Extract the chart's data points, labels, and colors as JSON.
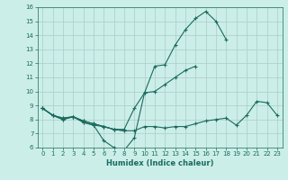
{
  "title": "",
  "xlabel": "Humidex (Indice chaleur)",
  "bg_color": "#cceee8",
  "grid_color": "#aacccc",
  "line_color": "#1a6b5e",
  "xlim": [
    -0.5,
    23.5
  ],
  "ylim": [
    6,
    16
  ],
  "x": [
    0,
    1,
    2,
    3,
    4,
    5,
    6,
    7,
    8,
    9,
    10,
    11,
    12,
    13,
    14,
    15,
    16,
    17,
    18,
    19,
    20,
    21,
    22,
    23
  ],
  "line1": [
    8.8,
    8.3,
    8.0,
    8.2,
    7.8,
    7.6,
    6.5,
    6.0,
    5.8,
    6.7,
    9.9,
    11.8,
    11.9,
    13.3,
    14.4,
    15.2,
    15.7,
    15.0,
    13.7,
    null,
    null,
    null,
    null,
    null
  ],
  "line2": [
    8.8,
    8.3,
    8.0,
    8.2,
    7.8,
    7.6,
    7.5,
    7.3,
    7.3,
    8.8,
    9.9,
    10.0,
    10.5,
    11.0,
    11.5,
    11.8,
    null,
    null,
    null,
    null,
    null,
    null,
    null,
    null
  ],
  "line3": [
    8.8,
    8.3,
    8.1,
    8.2,
    7.9,
    7.7,
    7.5,
    7.3,
    7.2,
    7.2,
    7.5,
    7.5,
    7.4,
    7.5,
    7.5,
    7.7,
    7.9,
    8.0,
    8.1,
    7.6,
    8.3,
    9.3,
    9.2,
    8.3
  ],
  "line4": [
    8.8,
    8.3,
    8.1,
    8.2,
    7.9,
    7.7,
    7.5,
    7.3,
    7.2,
    null,
    null,
    null,
    null,
    null,
    null,
    null,
    null,
    null,
    null,
    null,
    null,
    null,
    null,
    null
  ],
  "xticks": [
    0,
    1,
    2,
    3,
    4,
    5,
    6,
    7,
    8,
    9,
    10,
    11,
    12,
    13,
    14,
    15,
    16,
    17,
    18,
    19,
    20,
    21,
    22,
    23
  ],
  "yticks": [
    6,
    7,
    8,
    9,
    10,
    11,
    12,
    13,
    14,
    15,
    16
  ]
}
